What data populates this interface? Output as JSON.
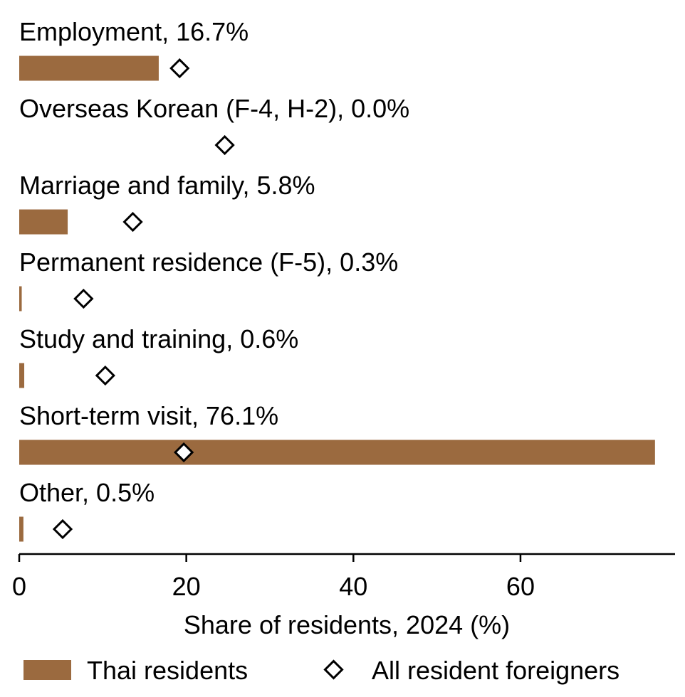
{
  "chart_data": {
    "type": "bar",
    "orientation": "horizontal",
    "categories": [
      "Employment",
      "Overseas Korean (F-4, H-2)",
      "Marriage and family",
      "Permanent residence (F-5)",
      "Study and training",
      "Short-term visit",
      "Other"
    ],
    "category_labels": [
      "Employment, 16.7%",
      "Overseas Korean (F-4, H-2), 0.0%",
      "Marriage and family, 5.8%",
      "Permanent residence (F-5), 0.3%",
      "Study and training, 0.6%",
      "Short-term visit, 76.1%",
      "Other, 0.5%"
    ],
    "series": [
      {
        "name": "Thai residents",
        "mark": "bar",
        "values": [
          16.7,
          0.0,
          5.8,
          0.3,
          0.6,
          76.1,
          0.5
        ]
      },
      {
        "name": "All resident foreigners",
        "mark": "diamond",
        "values": [
          19.2,
          24.6,
          13.6,
          7.7,
          10.3,
          19.7,
          5.2
        ]
      }
    ],
    "xlabel": "Share of residents, 2024 (%)",
    "xlim": [
      0,
      78.5
    ],
    "xticks": [
      0,
      20,
      40,
      60
    ],
    "grid": false,
    "legend_position": "bottom",
    "colors": {
      "bar": "#9b6a3f",
      "diamond_fill": "#ffffff",
      "diamond_stroke": "#000000"
    }
  }
}
